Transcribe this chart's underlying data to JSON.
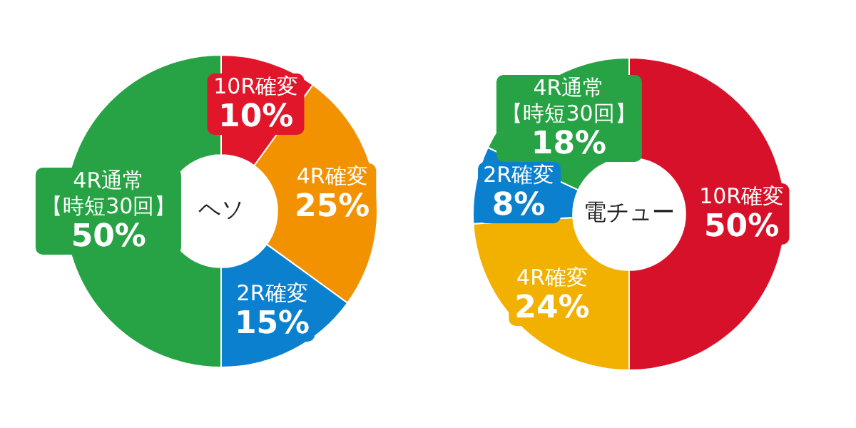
{
  "chart_data": [
    {
      "type": "donut",
      "title": "ヘソ",
      "categories": [
        "10R確変",
        "4R確変",
        "2R確変",
        "4R通常【時短30回】"
      ],
      "values": [
        10,
        25,
        15,
        50
      ],
      "value_labels": [
        "10%",
        "25%",
        "15%",
        "50%"
      ],
      "colors": [
        "#e2162b",
        "#f39200",
        "#0a80cf",
        "#27a244"
      ],
      "data_labels": true,
      "legend": false
    },
    {
      "type": "donut",
      "title": "電チュー",
      "categories": [
        "10R確変",
        "4R確変",
        "2R確変",
        "4R通常【時短30回】"
      ],
      "values": [
        50,
        24,
        8,
        18
      ],
      "value_labels": [
        "50%",
        "24%",
        "8%",
        "18%"
      ],
      "colors": [
        "#d8112a",
        "#f2b000",
        "#0a80cf",
        "#27a244"
      ],
      "data_labels": true,
      "legend": false
    }
  ]
}
